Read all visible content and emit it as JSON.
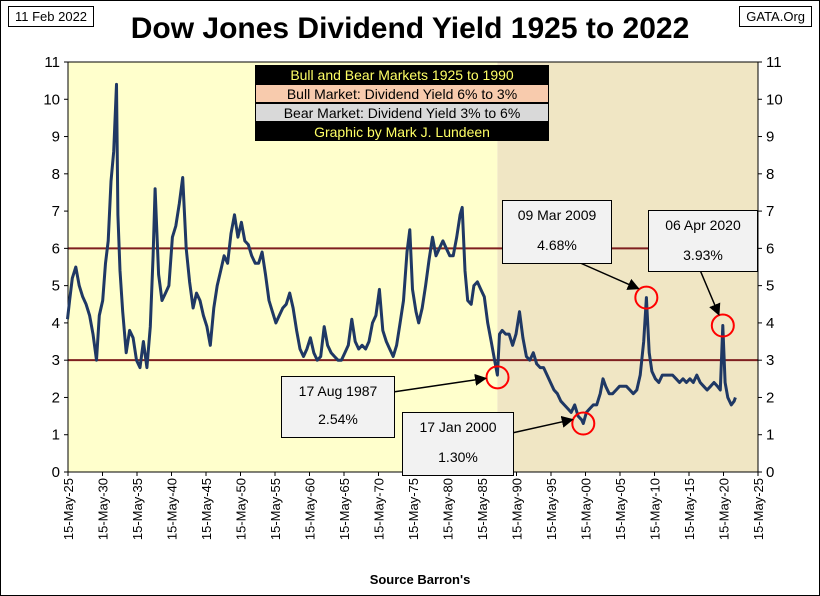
{
  "header": {
    "date": "11 Feb 2022",
    "source_site": "GATA.Org",
    "title": "Dow Jones Dividend Yield 1925 to 2022"
  },
  "footer": {
    "source": "Source Barron's"
  },
  "legend": {
    "title": "Bull and Bear Markets 1925 to 1990",
    "bull": "Bull Market: Dividend Yield 6% to 3%",
    "bear": "Bear Market: Dividend Yield 3% to 6%",
    "credit": "Graphic by Mark J. Lundeen"
  },
  "annotations": [
    {
      "date": "17 Aug 1987",
      "value": "2.54%"
    },
    {
      "date": "17 Jan 2000",
      "value": "1.30%"
    },
    {
      "date": "09 Mar 2009",
      "value": "4.68%"
    },
    {
      "date": "06 Apr 2020",
      "value": "3.93%"
    }
  ],
  "colors": {
    "pre_1987_background": "#ffffcc",
    "post_1987_background": "#f0e6c4",
    "series": "#1f3864",
    "reference_lines": "#7f1f1f",
    "highlight_circles": "#ff0000"
  },
  "chart_data": {
    "type": "line",
    "title": "Dow Jones Dividend Yield 1925 to 2022",
    "xlabel": "Source Barron's",
    "ylabel": "",
    "ylim": [
      0,
      11
    ],
    "xlim": [
      "1925-05-15",
      "2025-05-15"
    ],
    "y_ticks": [
      0,
      1,
      2,
      3,
      4,
      5,
      6,
      7,
      8,
      9,
      10,
      11
    ],
    "x_tick_labels": [
      "15-May-25",
      "15-May-30",
      "15-May-35",
      "15-May-40",
      "15-May-45",
      "15-May-50",
      "15-May-55",
      "15-May-60",
      "15-May-65",
      "15-May-70",
      "15-May-75",
      "15-May-80",
      "15-May-85",
      "15-May-90",
      "15-May-95",
      "15-May-00",
      "15-May-05",
      "15-May-10",
      "15-May-15",
      "15-May-20",
      "15-May-25"
    ],
    "reference_lines_y": [
      3,
      6
    ],
    "grid": false,
    "series": [
      {
        "name": "",
        "points": [
          [
            1925.3,
            4.1
          ],
          [
            1925.6,
            4.6
          ],
          [
            1926.0,
            5.2
          ],
          [
            1926.5,
            5.5
          ],
          [
            1927.0,
            5.0
          ],
          [
            1927.5,
            4.7
          ],
          [
            1928.0,
            4.5
          ],
          [
            1928.5,
            4.2
          ],
          [
            1929.0,
            3.7
          ],
          [
            1929.5,
            3.0
          ],
          [
            1929.9,
            4.2
          ],
          [
            1930.4,
            4.6
          ],
          [
            1930.8,
            5.6
          ],
          [
            1931.2,
            6.2
          ],
          [
            1931.6,
            7.8
          ],
          [
            1932.0,
            8.6
          ],
          [
            1932.4,
            10.4
          ],
          [
            1932.6,
            6.9
          ],
          [
            1932.9,
            5.4
          ],
          [
            1933.3,
            4.3
          ],
          [
            1933.8,
            3.2
          ],
          [
            1934.3,
            3.8
          ],
          [
            1934.8,
            3.6
          ],
          [
            1935.3,
            3.0
          ],
          [
            1935.8,
            2.8
          ],
          [
            1936.3,
            3.5
          ],
          [
            1936.8,
            2.8
          ],
          [
            1937.3,
            3.9
          ],
          [
            1937.7,
            5.8
          ],
          [
            1938.0,
            7.6
          ],
          [
            1938.5,
            5.3
          ],
          [
            1939.0,
            4.6
          ],
          [
            1939.5,
            4.8
          ],
          [
            1940.0,
            5.0
          ],
          [
            1940.5,
            6.3
          ],
          [
            1941.0,
            6.6
          ],
          [
            1941.5,
            7.2
          ],
          [
            1942.0,
            7.9
          ],
          [
            1942.5,
            6.0
          ],
          [
            1943.0,
            5.1
          ],
          [
            1943.5,
            4.4
          ],
          [
            1944.0,
            4.8
          ],
          [
            1944.5,
            4.6
          ],
          [
            1945.0,
            4.2
          ],
          [
            1945.5,
            3.9
          ],
          [
            1946.0,
            3.4
          ],
          [
            1946.5,
            4.4
          ],
          [
            1947.0,
            5.0
          ],
          [
            1947.5,
            5.4
          ],
          [
            1948.0,
            5.8
          ],
          [
            1948.5,
            5.6
          ],
          [
            1949.0,
            6.4
          ],
          [
            1949.5,
            6.9
          ],
          [
            1950.0,
            6.3
          ],
          [
            1950.5,
            6.7
          ],
          [
            1951.0,
            6.2
          ],
          [
            1951.5,
            6.1
          ],
          [
            1952.0,
            5.8
          ],
          [
            1952.5,
            5.6
          ],
          [
            1953.0,
            5.6
          ],
          [
            1953.5,
            5.9
          ],
          [
            1954.0,
            5.3
          ],
          [
            1954.5,
            4.6
          ],
          [
            1955.0,
            4.3
          ],
          [
            1955.5,
            4.0
          ],
          [
            1956.0,
            4.2
          ],
          [
            1956.5,
            4.4
          ],
          [
            1957.0,
            4.5
          ],
          [
            1957.5,
            4.8
          ],
          [
            1958.0,
            4.4
          ],
          [
            1958.5,
            3.8
          ],
          [
            1959.0,
            3.3
          ],
          [
            1959.5,
            3.1
          ],
          [
            1960.0,
            3.3
          ],
          [
            1960.5,
            3.6
          ],
          [
            1961.0,
            3.2
          ],
          [
            1961.5,
            3.0
          ],
          [
            1962.0,
            3.1
          ],
          [
            1962.5,
            3.9
          ],
          [
            1963.0,
            3.4
          ],
          [
            1963.5,
            3.2
          ],
          [
            1964.0,
            3.1
          ],
          [
            1964.5,
            3.0
          ],
          [
            1965.0,
            3.0
          ],
          [
            1965.5,
            3.2
          ],
          [
            1966.0,
            3.4
          ],
          [
            1966.5,
            4.1
          ],
          [
            1967.0,
            3.5
          ],
          [
            1967.5,
            3.3
          ],
          [
            1968.0,
            3.4
          ],
          [
            1968.5,
            3.3
          ],
          [
            1969.0,
            3.5
          ],
          [
            1969.5,
            4.0
          ],
          [
            1970.0,
            4.2
          ],
          [
            1970.5,
            4.9
          ],
          [
            1971.0,
            3.8
          ],
          [
            1971.5,
            3.5
          ],
          [
            1972.0,
            3.3
          ],
          [
            1972.5,
            3.1
          ],
          [
            1973.0,
            3.4
          ],
          [
            1973.5,
            4.0
          ],
          [
            1974.0,
            4.6
          ],
          [
            1974.5,
            5.9
          ],
          [
            1974.9,
            6.5
          ],
          [
            1975.3,
            4.9
          ],
          [
            1975.8,
            4.3
          ],
          [
            1976.2,
            4.0
          ],
          [
            1976.7,
            4.4
          ],
          [
            1977.2,
            5.0
          ],
          [
            1977.7,
            5.7
          ],
          [
            1978.2,
            6.3
          ],
          [
            1978.7,
            5.8
          ],
          [
            1979.2,
            6.0
          ],
          [
            1979.7,
            6.2
          ],
          [
            1980.2,
            6.0
          ],
          [
            1980.7,
            5.8
          ],
          [
            1981.2,
            5.8
          ],
          [
            1981.7,
            6.3
          ],
          [
            1982.2,
            6.9
          ],
          [
            1982.5,
            7.1
          ],
          [
            1982.9,
            5.4
          ],
          [
            1983.3,
            4.6
          ],
          [
            1983.8,
            4.5
          ],
          [
            1984.2,
            5.0
          ],
          [
            1984.7,
            5.1
          ],
          [
            1985.2,
            4.9
          ],
          [
            1985.7,
            4.7
          ],
          [
            1986.2,
            4.0
          ],
          [
            1986.7,
            3.5
          ],
          [
            1987.2,
            3.0
          ],
          [
            1987.6,
            2.6
          ],
          [
            1987.9,
            3.7
          ],
          [
            1988.3,
            3.8
          ],
          [
            1988.8,
            3.7
          ],
          [
            1989.3,
            3.7
          ],
          [
            1989.8,
            3.4
          ],
          [
            1990.3,
            3.7
          ],
          [
            1990.8,
            4.3
          ],
          [
            1991.3,
            3.6
          ],
          [
            1991.8,
            3.1
          ],
          [
            1992.3,
            3.0
          ],
          [
            1992.8,
            3.2
          ],
          [
            1993.3,
            2.9
          ],
          [
            1993.8,
            2.8
          ],
          [
            1994.3,
            2.8
          ],
          [
            1994.8,
            2.6
          ],
          [
            1995.3,
            2.4
          ],
          [
            1995.8,
            2.2
          ],
          [
            1996.3,
            2.1
          ],
          [
            1996.8,
            1.9
          ],
          [
            1997.3,
            1.8
          ],
          [
            1997.8,
            1.7
          ],
          [
            1998.3,
            1.6
          ],
          [
            1998.8,
            1.8
          ],
          [
            1999.3,
            1.5
          ],
          [
            1999.8,
            1.4
          ],
          [
            2000.05,
            1.3
          ],
          [
            2000.5,
            1.6
          ],
          [
            2001.0,
            1.7
          ],
          [
            2001.5,
            1.8
          ],
          [
            2002.0,
            1.8
          ],
          [
            2002.5,
            2.1
          ],
          [
            2002.9,
            2.5
          ],
          [
            2003.3,
            2.3
          ],
          [
            2003.8,
            2.1
          ],
          [
            2004.3,
            2.1
          ],
          [
            2004.8,
            2.2
          ],
          [
            2005.3,
            2.3
          ],
          [
            2005.8,
            2.3
          ],
          [
            2006.3,
            2.3
          ],
          [
            2006.8,
            2.2
          ],
          [
            2007.3,
            2.1
          ],
          [
            2007.8,
            2.2
          ],
          [
            2008.3,
            2.6
          ],
          [
            2008.8,
            3.5
          ],
          [
            2009.2,
            4.68
          ],
          [
            2009.6,
            3.2
          ],
          [
            2010.0,
            2.7
          ],
          [
            2010.5,
            2.5
          ],
          [
            2011.0,
            2.4
          ],
          [
            2011.5,
            2.6
          ],
          [
            2012.0,
            2.6
          ],
          [
            2012.5,
            2.6
          ],
          [
            2013.0,
            2.6
          ],
          [
            2013.5,
            2.5
          ],
          [
            2014.0,
            2.4
          ],
          [
            2014.5,
            2.5
          ],
          [
            2015.0,
            2.4
          ],
          [
            2015.5,
            2.5
          ],
          [
            2016.0,
            2.4
          ],
          [
            2016.5,
            2.6
          ],
          [
            2017.0,
            2.4
          ],
          [
            2017.5,
            2.3
          ],
          [
            2018.0,
            2.2
          ],
          [
            2018.5,
            2.3
          ],
          [
            2019.0,
            2.4
          ],
          [
            2019.5,
            2.3
          ],
          [
            2019.9,
            2.2
          ],
          [
            2020.27,
            3.93
          ],
          [
            2020.6,
            2.4
          ],
          [
            2021.0,
            2.0
          ],
          [
            2021.5,
            1.8
          ],
          [
            2021.9,
            1.9
          ],
          [
            2022.1,
            2.0
          ]
        ]
      }
    ]
  }
}
